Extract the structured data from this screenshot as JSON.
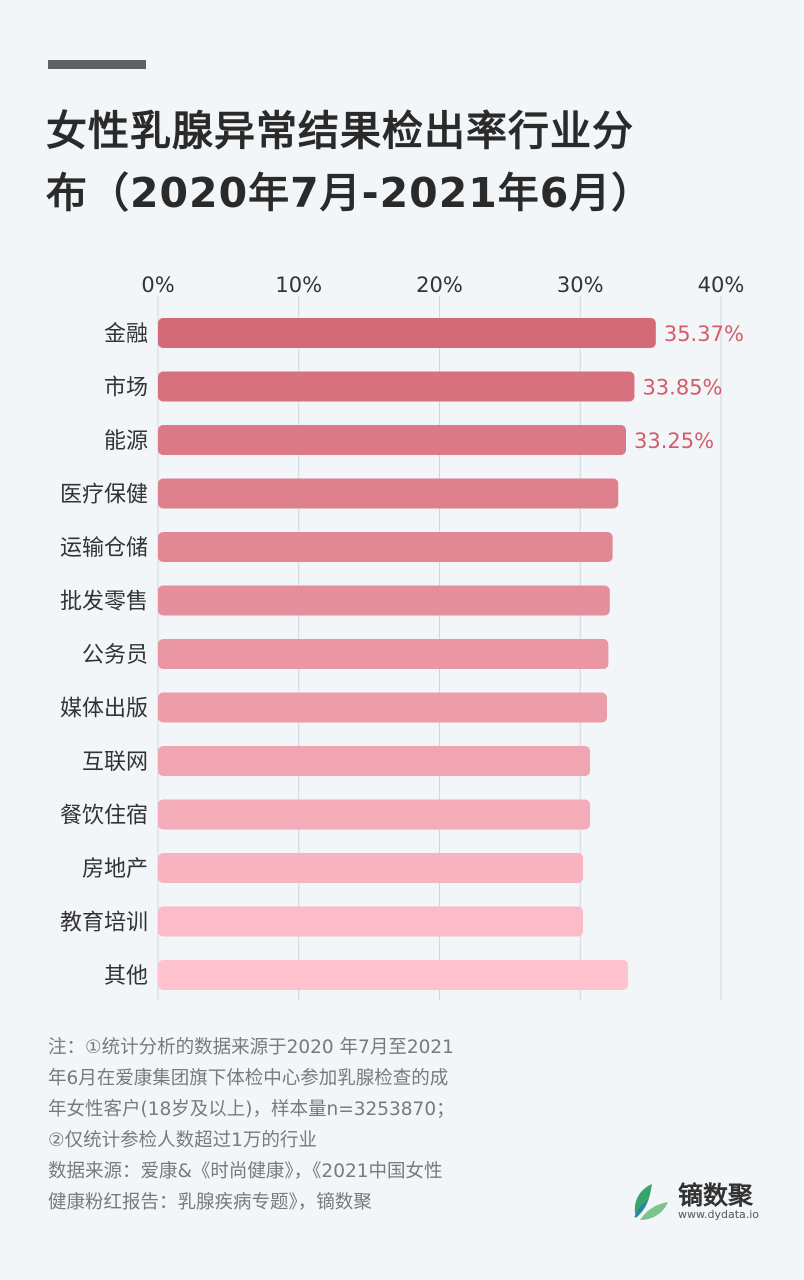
{
  "title_line1": "女性乳腺异常结果检出率行业分",
  "title_line2": "布（2020年7月-2021年6月）",
  "chart_data": {
    "type": "bar",
    "orientation": "horizontal",
    "title": "女性乳腺异常结果检出率行业分布（2020年7月-2021年6月）",
    "categories": [
      "金融",
      "市场",
      "能源",
      "医疗保健",
      "运输仓储",
      "批发零售",
      "公务员",
      "媒体出版",
      "互联网",
      "餐饮住宿",
      "房地产",
      "教育培训",
      "其他"
    ],
    "values": [
      35.37,
      33.85,
      33.25,
      32.7,
      32.3,
      32.1,
      32.0,
      31.9,
      30.7,
      30.7,
      30.2,
      30.2,
      33.4
    ],
    "data_labels": [
      "35.37%",
      "33.85%",
      "33.25%",
      "",
      "",
      "",
      "",
      "",
      "",
      "",
      "",
      "",
      ""
    ],
    "xlim": [
      0,
      40
    ],
    "ticks": [
      "0%",
      "10%",
      "20%",
      "30%",
      "40%"
    ],
    "tick_position": "top",
    "grid": true,
    "colors": {
      "bar_start": "#d46a77",
      "bar_end": "#ffc2cf",
      "label": "#d45c6a",
      "grid": "#cfd6de"
    }
  },
  "notes": {
    "line1": "注：①统计分析的数据来源于2020 年7月至2021",
    "line2": "年6月在爱康集团旗下体检中心参加乳腺检查的成",
    "line3": "年女性客户(18岁及以上)，样本量n=3253870；",
    "line4": "②仅统计参检人数超过1万的行业",
    "line5": "数据来源：爱康&《时尚健康》，《2021中国女性",
    "line6": "健康粉红报告：乳腺疾病专题》，镝数聚"
  },
  "logo": {
    "name": "镝数聚",
    "url": "www.dydata.io",
    "icon": "leaf-icon"
  }
}
